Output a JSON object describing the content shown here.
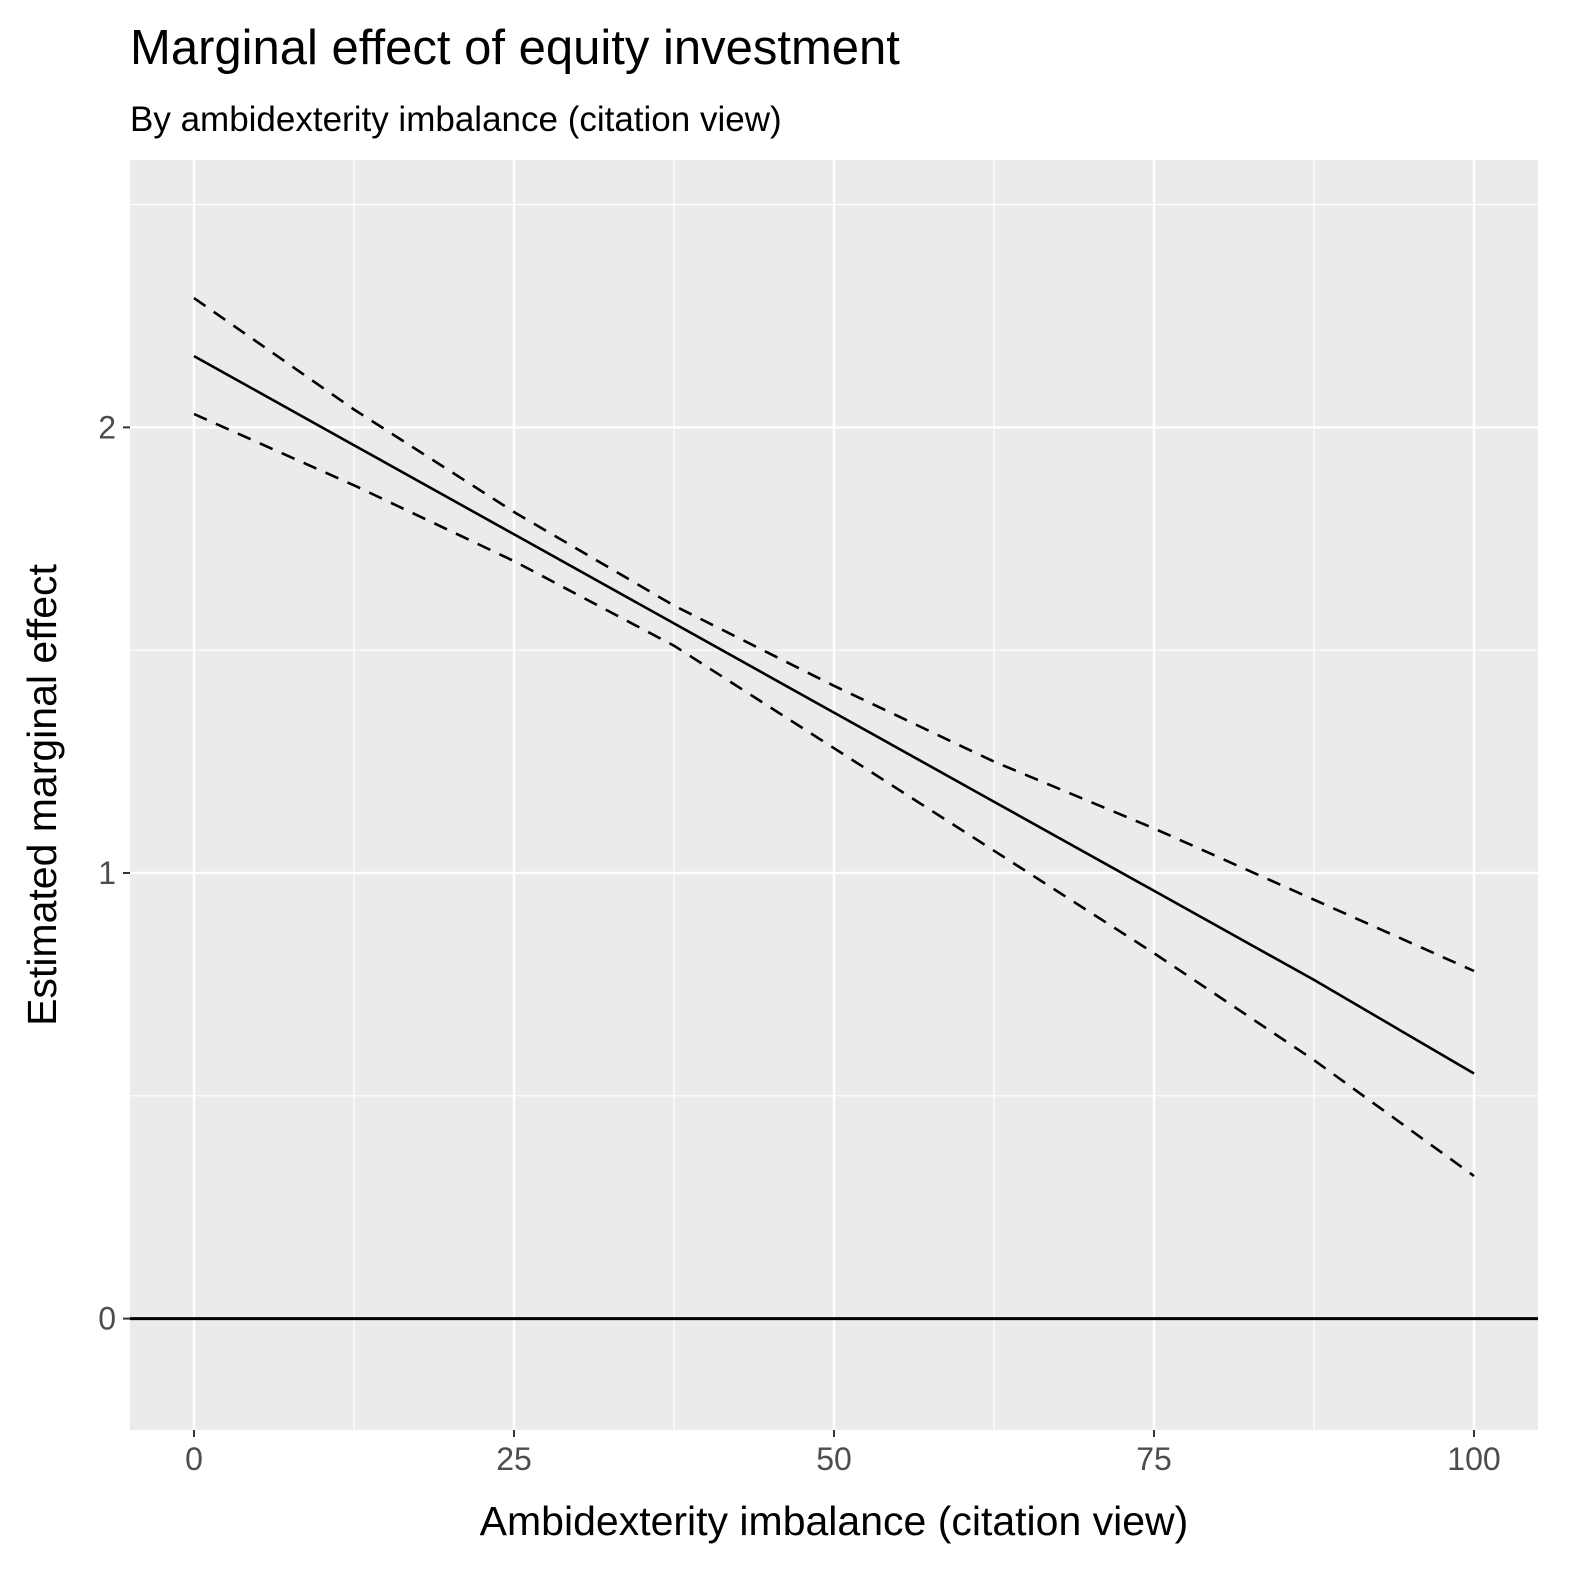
{
  "chart_data": {
    "type": "line",
    "title": "Marginal effect of equity investment",
    "subtitle": "By ambidexterity imbalance (citation view)",
    "xlabel": "Ambidexterity imbalance (citation view)",
    "ylabel": "Estimated marginal effect",
    "xlim": [
      -5,
      105
    ],
    "ylim": [
      -0.25,
      2.6
    ],
    "x_ticks": [
      0,
      25,
      50,
      75,
      100
    ],
    "y_ticks": [
      0,
      1,
      2
    ],
    "grid": true,
    "reference_line": {
      "y": 0
    },
    "x": [
      0,
      12.5,
      25,
      37.5,
      50,
      62.5,
      75,
      87.5,
      100
    ],
    "series": [
      {
        "role": "estimate",
        "values": [
          2.16,
          1.96,
          1.76,
          1.56,
          1.36,
          1.16,
          0.96,
          0.76,
          0.55
        ],
        "style": "solid"
      },
      {
        "role": "upper",
        "values": [
          2.29,
          2.04,
          1.81,
          1.6,
          1.42,
          1.25,
          1.1,
          0.94,
          0.78
        ],
        "style": "dashed"
      },
      {
        "role": "lower",
        "values": [
          2.03,
          1.87,
          1.7,
          1.51,
          1.28,
          1.05,
          0.82,
          0.58,
          0.32
        ],
        "style": "dashed"
      }
    ],
    "colors": {
      "panel": "#ebebeb",
      "grid": "#ffffff",
      "line": "#000000",
      "tick_text": "#4d4d4d"
    }
  }
}
